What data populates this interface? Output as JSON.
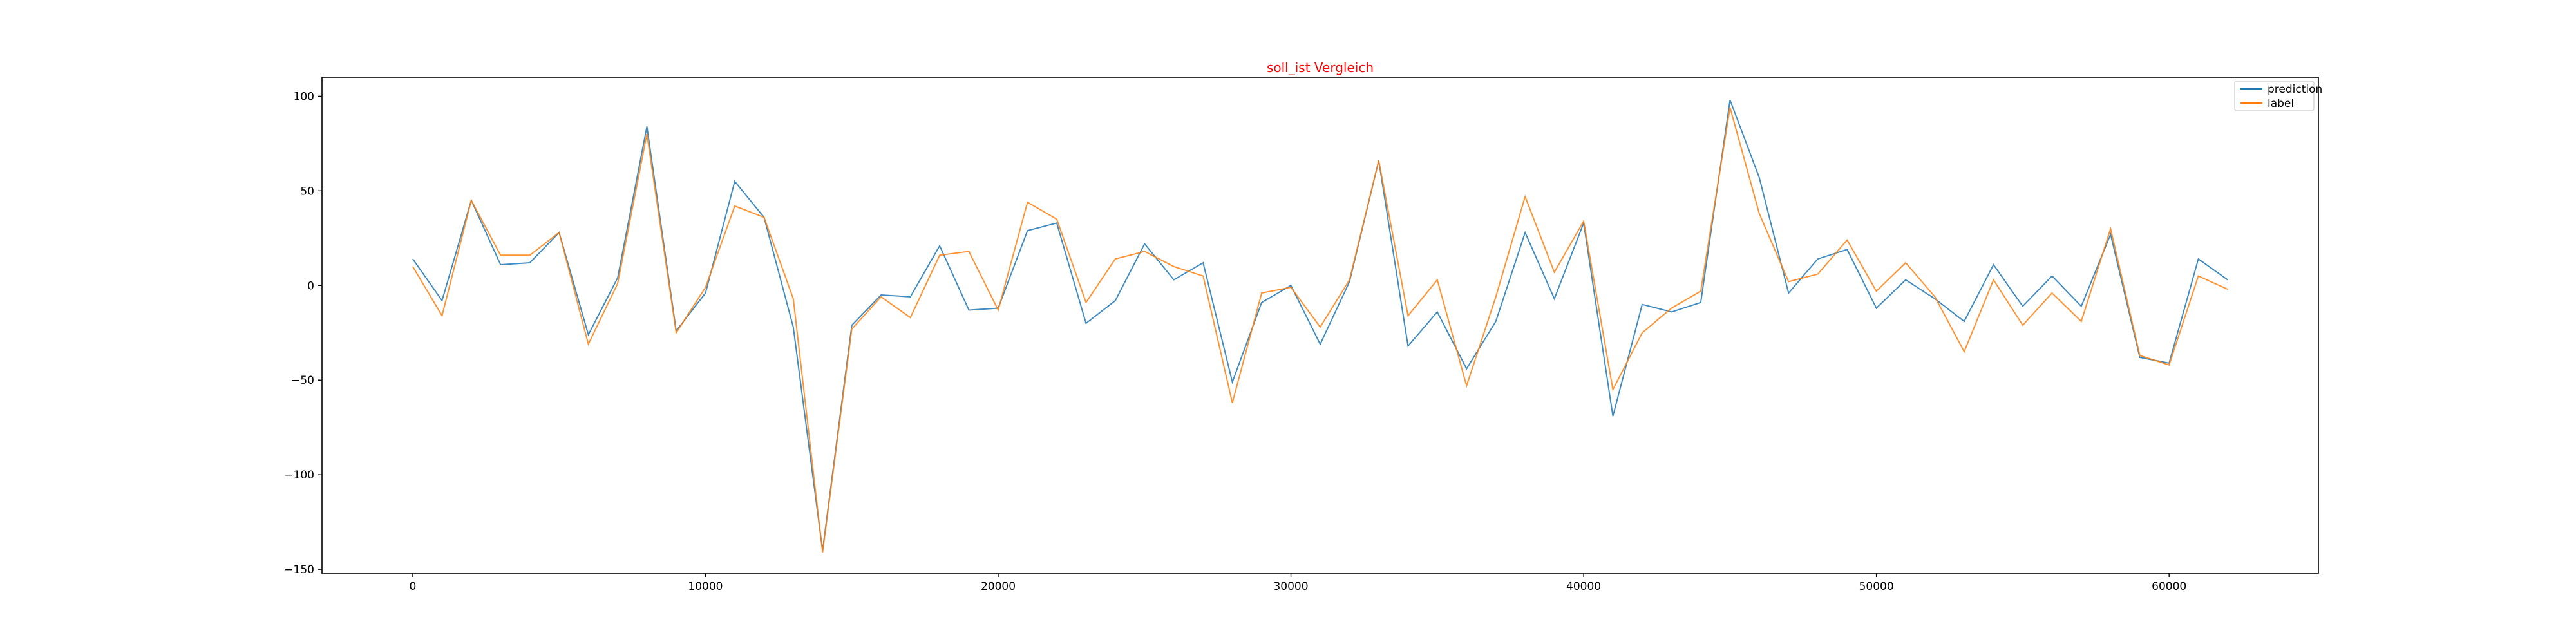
{
  "chart_data": {
    "type": "line",
    "title": "soll_ist Vergleich",
    "title_color": "#ff0000",
    "xlabel": "",
    "ylabel": "",
    "xlim": [
      -3100,
      65100
    ],
    "ylim": [
      -152,
      110
    ],
    "xticks": [
      0,
      10000,
      20000,
      30000,
      40000,
      50000,
      60000
    ],
    "yticks": [
      100,
      50,
      0,
      -50,
      -100,
      -150
    ],
    "grid": false,
    "legend_position": "upper-right",
    "x": [
      0,
      1000,
      2000,
      3000,
      4000,
      5000,
      6000,
      7000,
      8000,
      9000,
      10000,
      11000,
      12000,
      13000,
      14000,
      15000,
      16000,
      17000,
      18000,
      19000,
      20000,
      21000,
      22000,
      23000,
      24000,
      25000,
      26000,
      27000,
      28000,
      29000,
      30000,
      31000,
      32000,
      33000,
      34000,
      35000,
      36000,
      37000,
      38000,
      39000,
      40000,
      41000,
      42000,
      43000,
      44000,
      45000,
      46000,
      47000,
      48000,
      49000,
      50000,
      51000,
      52000,
      53000,
      54000,
      55000,
      56000,
      57000,
      58000,
      59000,
      60000,
      61000,
      62000
    ],
    "series": [
      {
        "name": "prediction",
        "color": "#1f77b4",
        "values": [
          14,
          -8,
          45,
          11,
          12,
          28,
          -26,
          4,
          84,
          -24,
          -4,
          55,
          36,
          -22,
          -140,
          -21,
          -5,
          -6,
          21,
          -13,
          -12,
          29,
          33,
          -20,
          -8,
          22,
          3,
          12,
          -51,
          -9,
          0,
          -31,
          2,
          66,
          -32,
          -14,
          -44,
          -19,
          28,
          -7,
          33,
          -69,
          -10,
          -14,
          -9,
          98,
          57,
          -4,
          14,
          19,
          -12,
          3,
          -7,
          -19,
          11,
          -11,
          5,
          -11,
          27,
          -38,
          -41,
          14,
          3
        ]
      },
      {
        "name": "label",
        "color": "#ff7f0e",
        "values": [
          10,
          -16,
          45,
          16,
          16,
          28,
          -31,
          1,
          80,
          -25,
          -1,
          42,
          36,
          -7,
          -141,
          -23,
          -6,
          -17,
          16,
          18,
          -13,
          44,
          35,
          -9,
          14,
          18,
          10,
          5,
          -62,
          -4,
          -1,
          -22,
          3,
          66,
          -16,
          3,
          -53,
          -6,
          47,
          7,
          34,
          -55,
          -25,
          -12,
          -3,
          94,
          38,
          2,
          6,
          24,
          -3,
          12,
          -6,
          -35,
          3,
          -21,
          -4,
          -19,
          30,
          -37,
          -42,
          5,
          -2
        ]
      }
    ]
  }
}
